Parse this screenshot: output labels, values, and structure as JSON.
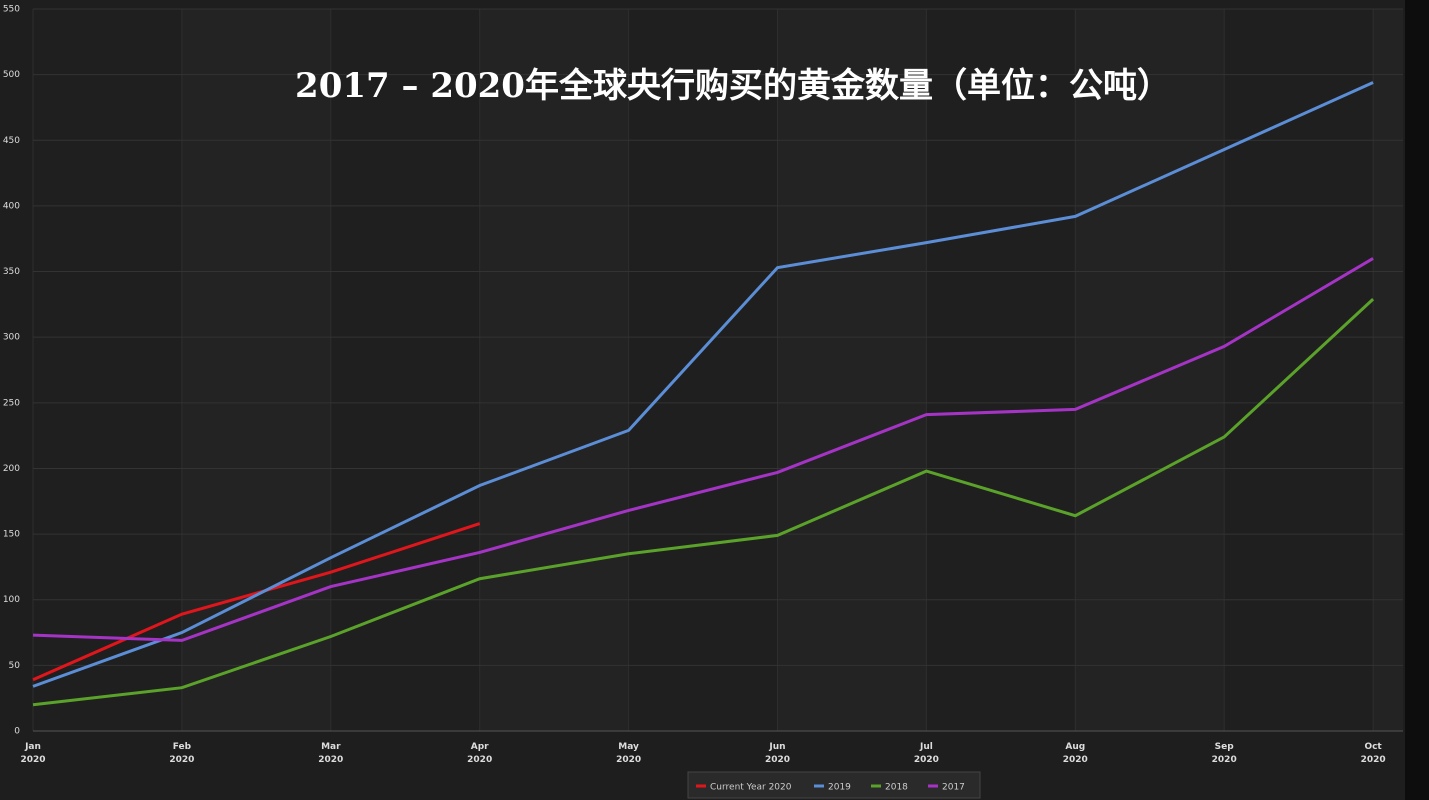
{
  "chart_data": {
    "type": "line",
    "title": "2017 – 2020年全球央行购买的黄金数量（单位：公吨）",
    "categories": [
      "Jan 2020",
      "Feb 2020",
      "Mar 2020",
      "Apr 2020",
      "May 2020",
      "Jun 2020",
      "Jul 2020",
      "Aug 2020",
      "Sep 2020",
      "Oct 2020"
    ],
    "series": [
      {
        "name": "Current Year 2020",
        "color": "#e0161c",
        "values": [
          39,
          89,
          121,
          158,
          null,
          null,
          null,
          null,
          null,
          null
        ]
      },
      {
        "name": "2019",
        "color": "#5b8ed6",
        "values": [
          34,
          75,
          132,
          187,
          229,
          353,
          372,
          392,
          443,
          494
        ]
      },
      {
        "name": "2018",
        "color": "#5aa22a",
        "values": [
          20,
          33,
          72,
          116,
          135,
          149,
          198,
          164,
          224,
          329
        ]
      },
      {
        "name": "2017",
        "color": "#a534c6",
        "values": [
          73,
          69,
          110,
          136,
          168,
          197,
          241,
          245,
          293,
          360
        ]
      }
    ],
    "ylim": [
      0,
      550
    ],
    "yticks": [
      0,
      50,
      100,
      150,
      200,
      250,
      300,
      350,
      400,
      450,
      500,
      550
    ],
    "grid": true
  }
}
